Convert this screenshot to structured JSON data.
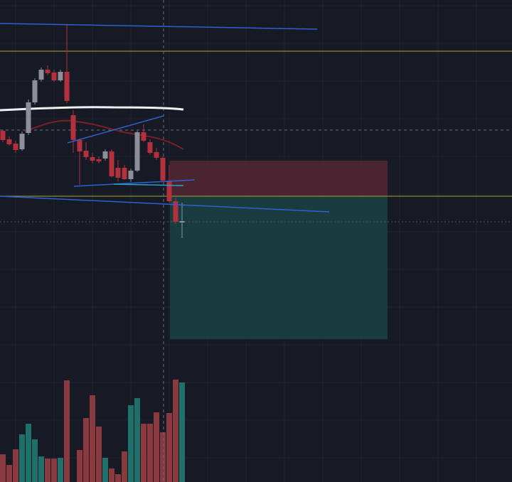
{
  "chart_data": {
    "type": "candlestick",
    "open": [
      494,
      482,
      476,
      468,
      491,
      534,
      566,
      580,
      576,
      565,
      577,
      516,
      481,
      466,
      457,
      454,
      455,
      465,
      442,
      442,
      426,
      438,
      492,
      478,
      464,
      456,
      424,
      395,
      365
    ],
    "high": [
      496,
      486,
      480,
      493,
      538,
      568,
      583,
      586,
      580,
      580,
      643,
      523,
      483,
      478,
      463,
      458,
      468,
      468,
      453,
      446,
      441,
      494,
      503,
      482,
      470,
      458,
      446,
      400,
      393
    ],
    "low": [
      478,
      473,
      463,
      466,
      488,
      531,
      563,
      572,
      563,
      563,
      533,
      463,
      418,
      453,
      448,
      448,
      452,
      428,
      423,
      425,
      422,
      436,
      478,
      460,
      453,
      422,
      393,
      363,
      343
    ],
    "close": [
      481,
      475,
      467,
      490,
      534,
      565,
      580,
      575,
      565,
      577,
      536,
      481,
      465,
      457,
      452,
      451,
      465,
      430,
      428,
      426,
      438,
      492,
      480,
      463,
      456,
      424,
      395,
      366,
      367
    ],
    "volume": [
      39,
      24,
      46,
      67,
      82,
      60,
      36,
      33,
      33,
      34,
      143,
      null,
      45,
      90,
      122,
      78,
      34,
      19,
      11,
      43,
      108,
      118,
      82,
      82,
      98,
      70,
      97,
      144,
      140
    ],
    "ylim": [
      0,
      678
    ],
    "volume_ylim": [
      0,
      678
    ],
    "up_color": "#8c8f98",
    "down_color": "#b3303d",
    "volume_up_color": "#1f6f6a",
    "volume_down_color": "#8a393e",
    "grid": true
  }
}
